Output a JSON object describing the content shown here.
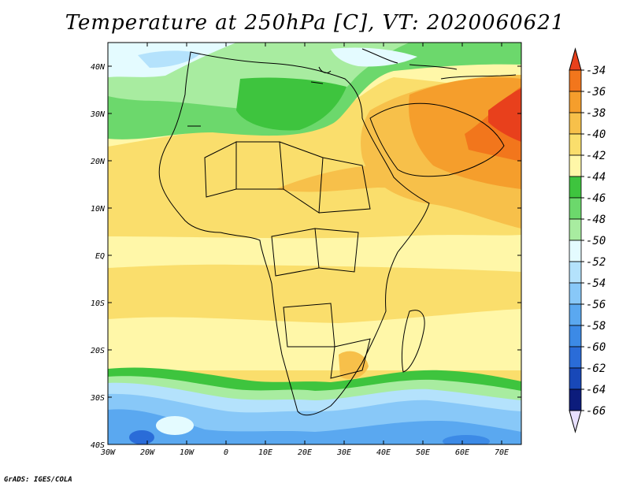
{
  "title": "Temperature at 250hPa [C], VT: 2020060621",
  "credit": "GrADS: IGES/COLA",
  "map": {
    "lon_labels": [
      "30W",
      "20W",
      "10W",
      "0",
      "10E",
      "20E",
      "30E",
      "40E",
      "50E",
      "60E",
      "70E"
    ],
    "lat_labels": [
      "40N",
      "30N",
      "20N",
      "10N",
      "EQ",
      "10S",
      "20S",
      "30S",
      "40S"
    ],
    "lon_range": [
      -30,
      75
    ],
    "lat_range": [
      -40,
      45
    ]
  },
  "colorbar": {
    "labels": [
      "-34",
      "-36",
      "-38",
      "-40",
      "-42",
      "-44",
      "-46",
      "-48",
      "-50",
      "-52",
      "-54",
      "-56",
      "-58",
      "-60",
      "-62",
      "-64",
      "-66"
    ],
    "colors": [
      "#e8401c",
      "#f2761c",
      "#f59e2c",
      "#f7c04a",
      "#fade6c",
      "#fff7a8",
      "#3ec43e",
      "#6cd86c",
      "#a8eca0",
      "#e4fbff",
      "#b4e2fc",
      "#88c8f8",
      "#5aa8f0",
      "#3c8ae6",
      "#2a6cd8",
      "#1848b8",
      "#0c1c7c",
      "#e8e0ff"
    ]
  }
}
